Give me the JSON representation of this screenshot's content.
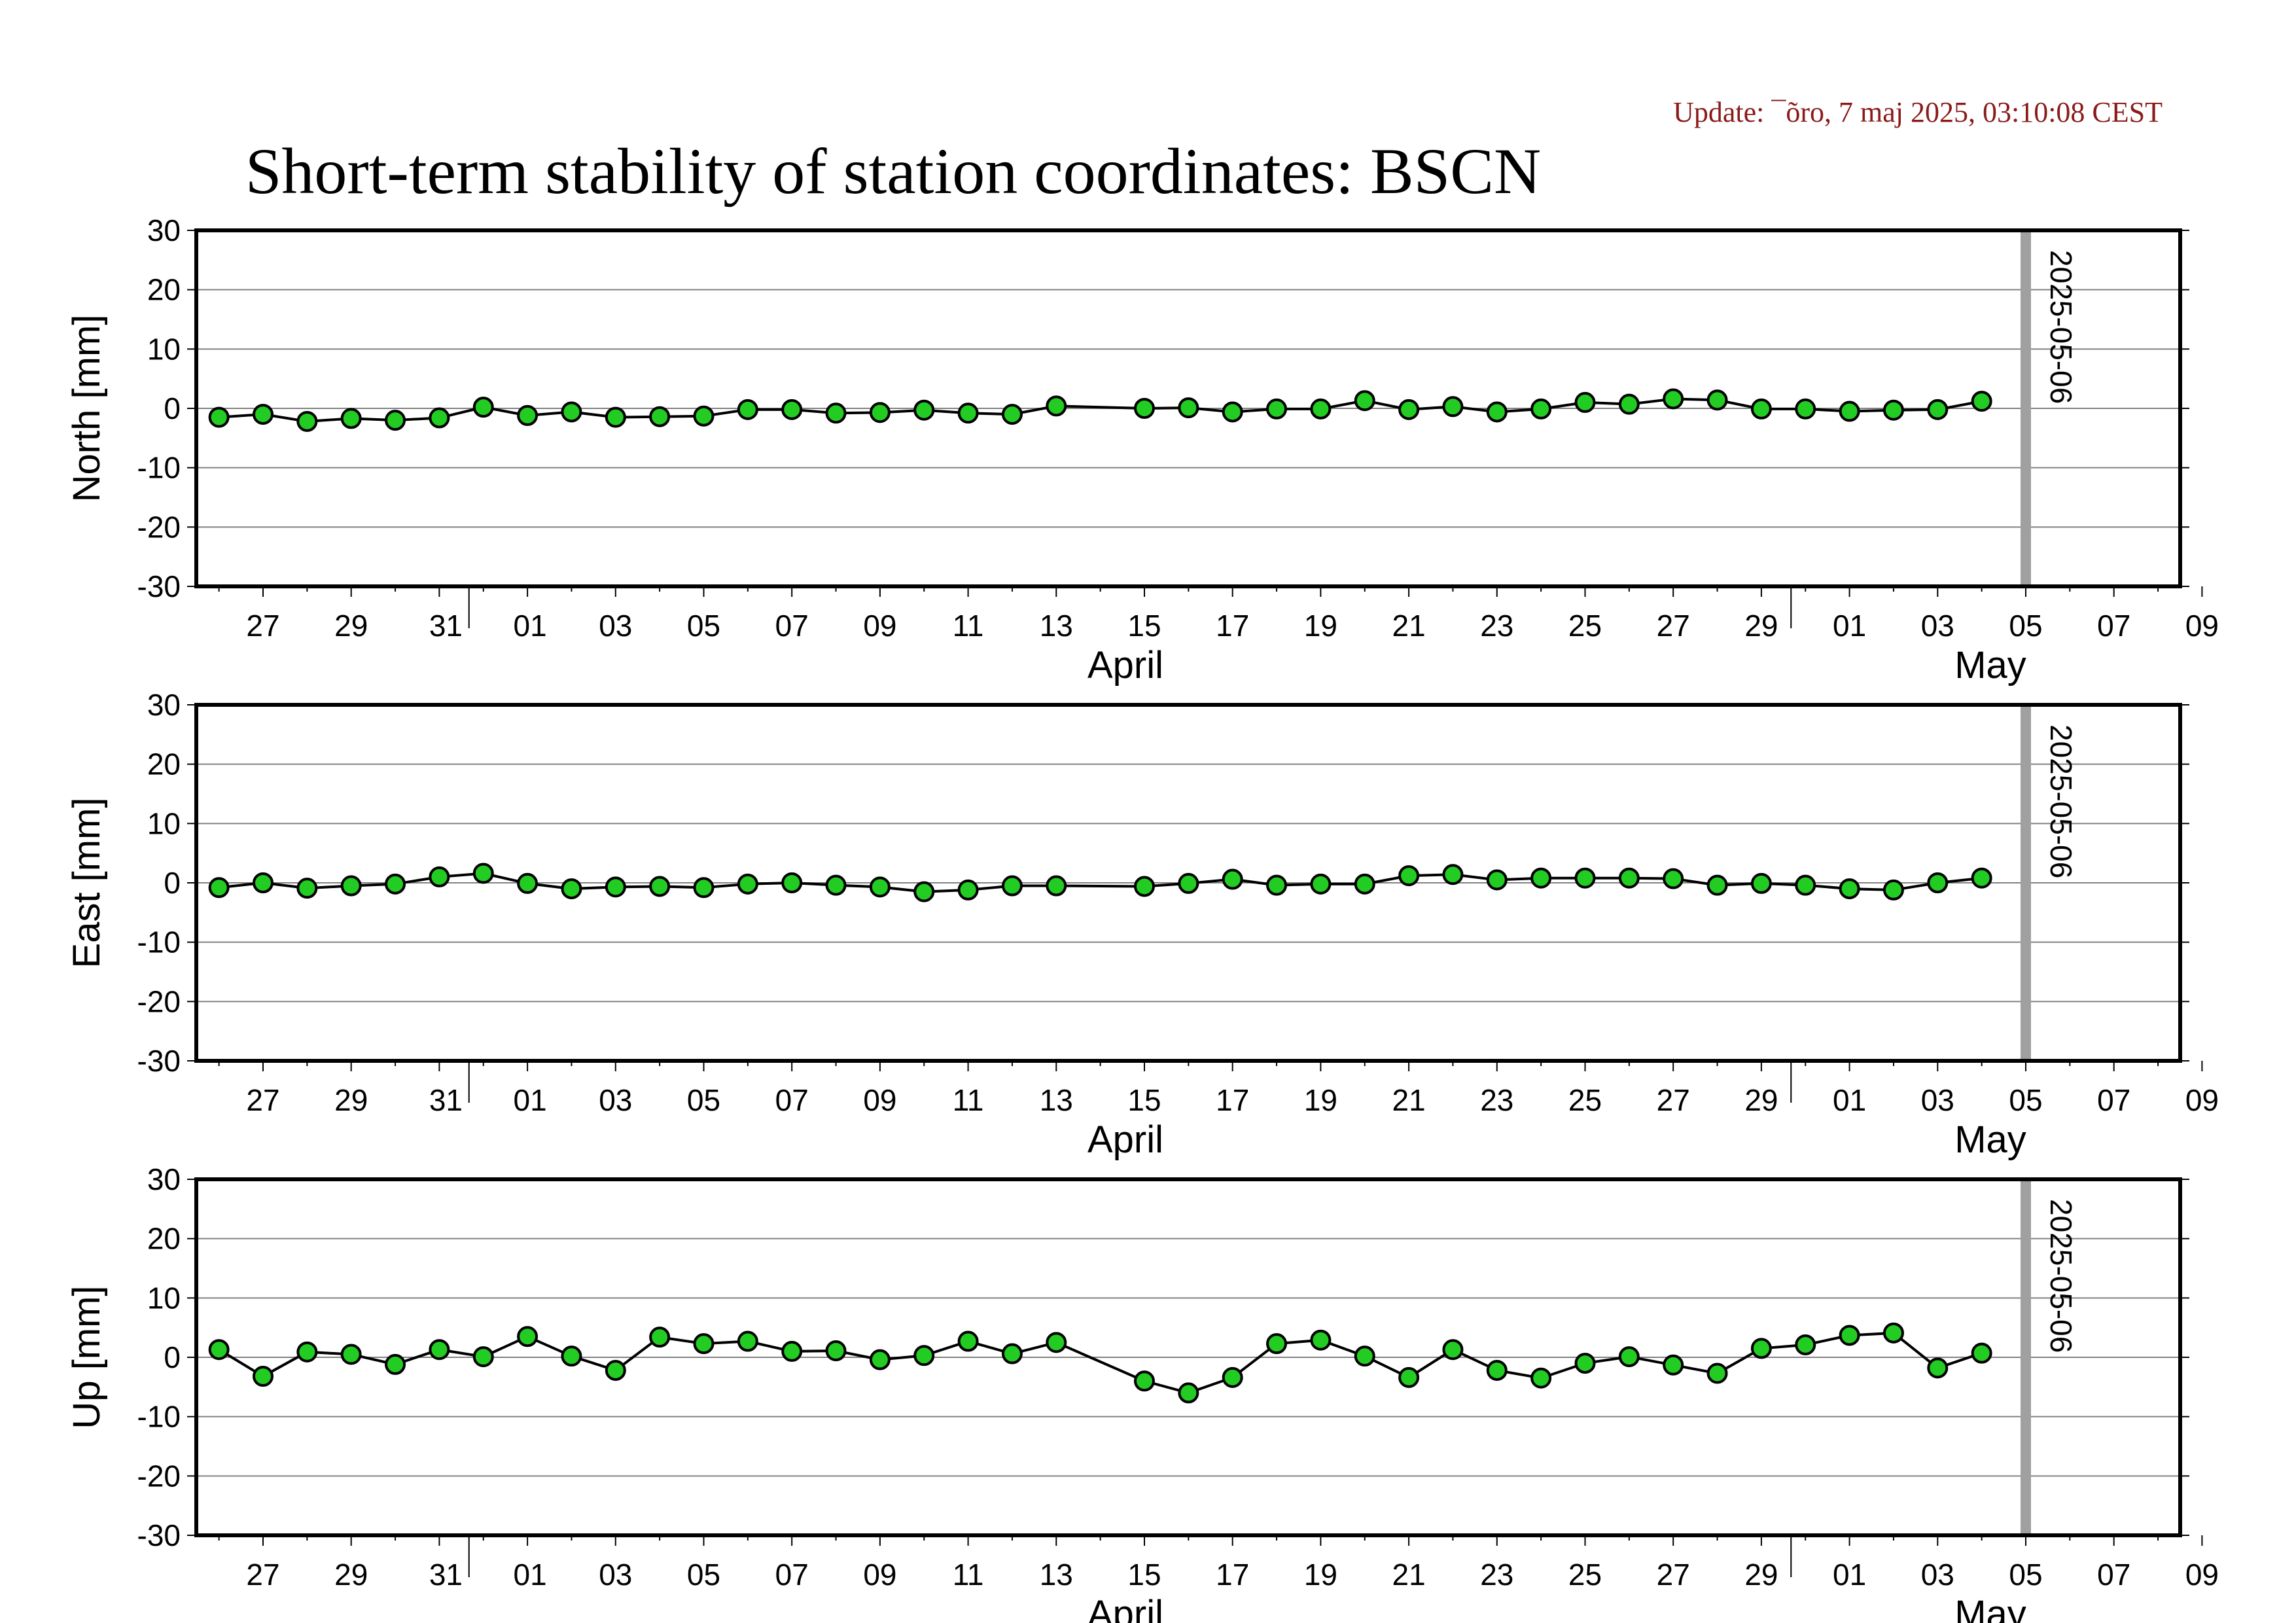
{
  "header": {
    "update": "Update: ¯õro, 7 maj 2025, 03:10:08 CEST",
    "title": "Short-term stability of station coordinates: BSCN"
  },
  "colors": {
    "marker_fill": "#22cc22",
    "marker_stroke": "#000000",
    "line": "#000000",
    "grid": "#808080",
    "current_date_band": "#a0a0a0",
    "update_text": "#8b1a1a"
  },
  "chart_data": [
    {
      "type": "line",
      "ylabel": "North [mm]",
      "ylim": [
        -30,
        30
      ],
      "yticks": [
        30,
        20,
        10,
        0,
        -10,
        -20,
        -30
      ],
      "xlim": [
        "2025-03-26",
        "2025-05-09T12:00"
      ],
      "grid": true,
      "marker_date": "2025-05-06",
      "series": [
        {
          "x": [
            "2025-03-26",
            "2025-03-27",
            "2025-03-28",
            "2025-03-29",
            "2025-03-30",
            "2025-03-31",
            "2025-04-01",
            "2025-04-02",
            "2025-04-03",
            "2025-04-04",
            "2025-04-05",
            "2025-04-06",
            "2025-04-07",
            "2025-04-08",
            "2025-04-09",
            "2025-04-10",
            "2025-04-11",
            "2025-04-12",
            "2025-04-13",
            "2025-04-14",
            "2025-04-16",
            "2025-04-17",
            "2025-04-18",
            "2025-04-19",
            "2025-04-20",
            "2025-04-21",
            "2025-04-22",
            "2025-04-23",
            "2025-04-24",
            "2025-04-25",
            "2025-04-26",
            "2025-04-27",
            "2025-04-28",
            "2025-04-29",
            "2025-04-30",
            "2025-05-01",
            "2025-05-02",
            "2025-05-03",
            "2025-05-04",
            "2025-05-05"
          ],
          "y": [
            -1.5,
            -1.0,
            -2.2,
            -1.7,
            -2.0,
            -1.6,
            0.2,
            -1.2,
            -0.6,
            -1.5,
            -1.4,
            -1.3,
            -0.2,
            -0.2,
            -0.8,
            -0.7,
            -0.3,
            -0.8,
            -1.0,
            0.4,
            0.0,
            0.1,
            -0.6,
            -0.1,
            -0.1,
            1.3,
            -0.2,
            0.3,
            -0.6,
            -0.1,
            1.0,
            0.7,
            1.6,
            1.4,
            -0.1,
            -0.1,
            -0.5,
            -0.3,
            -0.2,
            1.2
          ]
        }
      ]
    },
    {
      "type": "line",
      "ylabel": "East [mm]",
      "ylim": [
        -30,
        30
      ],
      "yticks": [
        30,
        20,
        10,
        0,
        -10,
        -20,
        -30
      ],
      "xlim": [
        "2025-03-26",
        "2025-05-09T12:00"
      ],
      "grid": true,
      "marker_date": "2025-05-06",
      "series": [
        {
          "x": [
            "2025-03-26",
            "2025-03-27",
            "2025-03-28",
            "2025-03-29",
            "2025-03-30",
            "2025-03-31",
            "2025-04-01",
            "2025-04-02",
            "2025-04-03",
            "2025-04-04",
            "2025-04-05",
            "2025-04-06",
            "2025-04-07",
            "2025-04-08",
            "2025-04-09",
            "2025-04-10",
            "2025-04-11",
            "2025-04-12",
            "2025-04-13",
            "2025-04-14",
            "2025-04-16",
            "2025-04-17",
            "2025-04-18",
            "2025-04-19",
            "2025-04-20",
            "2025-04-21",
            "2025-04-22",
            "2025-04-23",
            "2025-04-24",
            "2025-04-25",
            "2025-04-26",
            "2025-04-27",
            "2025-04-28",
            "2025-04-29",
            "2025-04-30",
            "2025-05-01",
            "2025-05-02",
            "2025-05-03",
            "2025-05-04",
            "2025-05-05"
          ],
          "y": [
            -0.8,
            0.0,
            -0.9,
            -0.5,
            -0.2,
            1.0,
            1.6,
            -0.1,
            -1.0,
            -0.7,
            -0.6,
            -0.8,
            -0.2,
            0.0,
            -0.4,
            -0.7,
            -1.5,
            -1.2,
            -0.5,
            -0.5,
            -0.6,
            -0.1,
            0.6,
            -0.4,
            -0.2,
            -0.2,
            1.2,
            1.4,
            0.5,
            0.8,
            0.8,
            0.8,
            0.7,
            -0.4,
            -0.1,
            -0.4,
            -1.0,
            -1.2,
            0.0,
            0.8
          ]
        }
      ]
    },
    {
      "type": "line",
      "ylabel": "Up [mm]",
      "ylim": [
        -30,
        30
      ],
      "yticks": [
        30,
        20,
        10,
        0,
        -10,
        -20,
        -30
      ],
      "xlim": [
        "2025-03-26",
        "2025-05-09T12:00"
      ],
      "grid": true,
      "marker_date": "2025-05-06",
      "series": [
        {
          "x": [
            "2025-03-26",
            "2025-03-27",
            "2025-03-28",
            "2025-03-29",
            "2025-03-30",
            "2025-03-31",
            "2025-04-01",
            "2025-04-02",
            "2025-04-03",
            "2025-04-04",
            "2025-04-05",
            "2025-04-06",
            "2025-04-07",
            "2025-04-08",
            "2025-04-09",
            "2025-04-10",
            "2025-04-11",
            "2025-04-12",
            "2025-04-13",
            "2025-04-14",
            "2025-04-16",
            "2025-04-17",
            "2025-04-18",
            "2025-04-19",
            "2025-04-20",
            "2025-04-21",
            "2025-04-22",
            "2025-04-23",
            "2025-04-24",
            "2025-04-25",
            "2025-04-26",
            "2025-04-27",
            "2025-04-28",
            "2025-04-29",
            "2025-04-30",
            "2025-05-01",
            "2025-05-02",
            "2025-05-03",
            "2025-05-04",
            "2025-05-05"
          ],
          "y": [
            1.3,
            -3.2,
            0.9,
            0.5,
            -1.2,
            1.3,
            0.1,
            3.5,
            0.2,
            -2.2,
            3.4,
            2.3,
            2.7,
            1.0,
            1.1,
            -0.4,
            0.3,
            2.7,
            0.6,
            2.5,
            -4.0,
            -6.0,
            -3.4,
            2.3,
            2.9,
            0.2,
            -3.4,
            1.3,
            -2.2,
            -3.5,
            -1.0,
            0.1,
            -1.3,
            -2.7,
            1.5,
            2.1,
            3.7,
            4.1,
            -1.8,
            0.7
          ]
        }
      ]
    }
  ],
  "x_axis": {
    "tick_labels": [
      "27",
      "29",
      "31",
      "01",
      "03",
      "05",
      "07",
      "09",
      "11",
      "13",
      "15",
      "17",
      "19",
      "21",
      "23",
      "25",
      "27",
      "29",
      "01",
      "03",
      "05",
      "07",
      "09"
    ],
    "month_labels": [
      "April",
      "May"
    ]
  }
}
